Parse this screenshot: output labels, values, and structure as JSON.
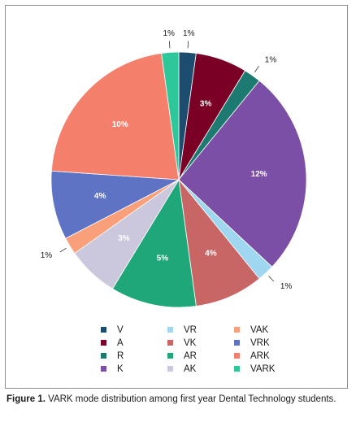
{
  "chart_data": {
    "type": "pie",
    "categories": [
      "V",
      "A",
      "R",
      "K",
      "VR",
      "VK",
      "AR",
      "AK",
      "VAK",
      "VRK",
      "ARK",
      "VARK"
    ],
    "values": [
      1,
      3,
      1,
      12,
      1,
      4,
      5,
      3,
      1,
      4,
      10,
      1
    ],
    "labels": [
      "1%",
      "3%",
      "1%",
      "12%",
      "1%",
      "4%",
      "5%",
      "3%",
      "1%",
      "4%",
      "10%",
      "1%"
    ],
    "colors": [
      "#1c4c6e",
      "#7a0026",
      "#1c7a70",
      "#7b4fa6",
      "#9fd6f0",
      "#c86666",
      "#1fa77a",
      "#cbc8dd",
      "#f9a07a",
      "#5e73c4",
      "#f4806c",
      "#2dc79a"
    ],
    "legend_placement": "bottom",
    "legend_columns": [
      [
        "V",
        "A",
        "R",
        "K"
      ],
      [
        "VR",
        "VK",
        "AR",
        "AK"
      ],
      [
        "VAK",
        "VRK",
        "ARK",
        "VARK"
      ]
    ]
  },
  "caption": {
    "label": "Figure 1.",
    "text": " VARK mode distribution among first year Dental Technology students."
  }
}
